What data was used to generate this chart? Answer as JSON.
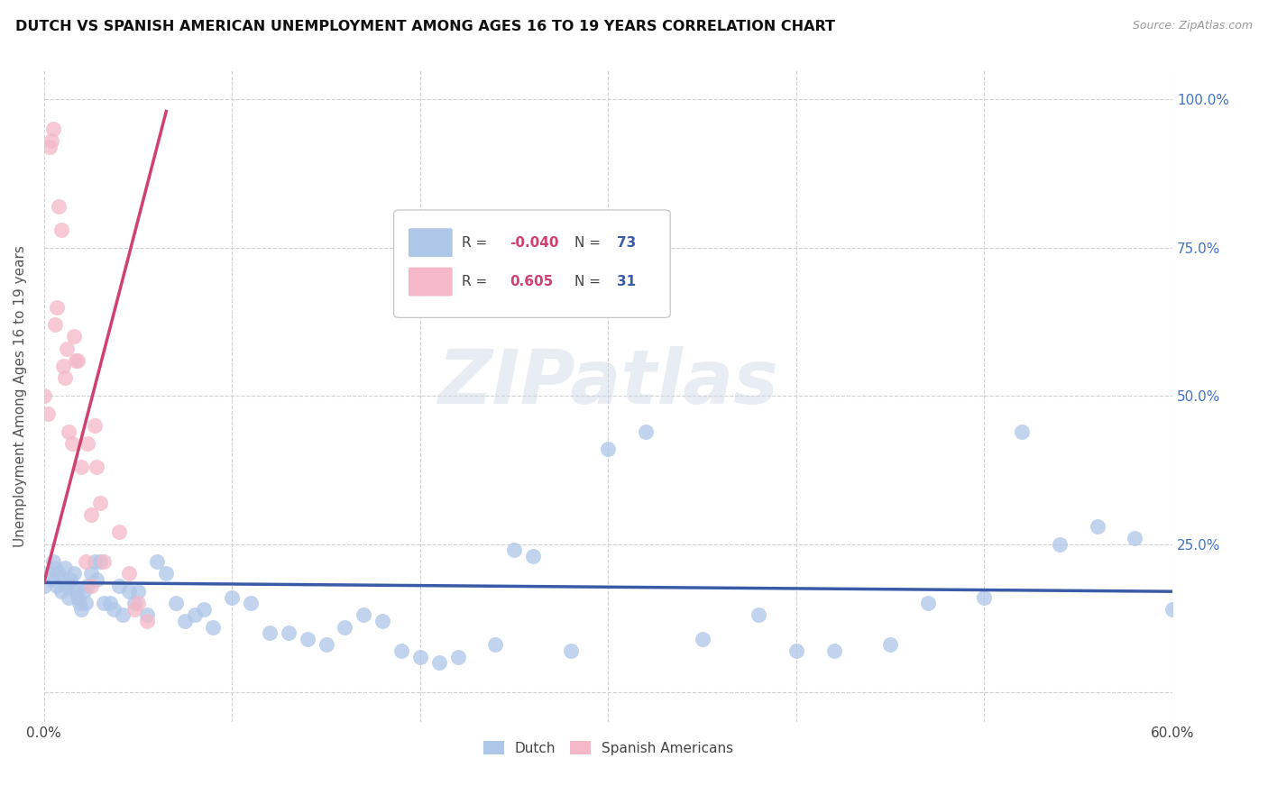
{
  "title": "DUTCH VS SPANISH AMERICAN UNEMPLOYMENT AMONG AGES 16 TO 19 YEARS CORRELATION CHART",
  "source": "Source: ZipAtlas.com",
  "ylabel": "Unemployment Among Ages 16 to 19 years",
  "xlim": [
    0.0,
    0.6
  ],
  "ylim": [
    -0.05,
    1.05
  ],
  "x_ticks": [
    0.0,
    0.1,
    0.2,
    0.3,
    0.4,
    0.5,
    0.6
  ],
  "x_tick_labels": [
    "0.0%",
    "",
    "",
    "",
    "",
    "",
    "60.0%"
  ],
  "y_ticks": [
    0.0,
    0.25,
    0.5,
    0.75,
    1.0
  ],
  "y_tick_labels": [
    "",
    "25.0%",
    "50.0%",
    "75.0%",
    "100.0%"
  ],
  "dutch_color": "#aec6e8",
  "spanish_color": "#f4b8c8",
  "dutch_line_color": "#3a5ca8",
  "spanish_line_color": "#d04070",
  "dutch_R": -0.04,
  "dutch_N": 73,
  "spanish_R": 0.605,
  "spanish_N": 31,
  "watermark": "ZIPatlas",
  "dutch_x": [
    0.0,
    0.002,
    0.004,
    0.005,
    0.006,
    0.007,
    0.008,
    0.009,
    0.01,
    0.011,
    0.012,
    0.013,
    0.014,
    0.015,
    0.016,
    0.017,
    0.018,
    0.019,
    0.02,
    0.021,
    0.022,
    0.023,
    0.025,
    0.027,
    0.028,
    0.03,
    0.032,
    0.035,
    0.037,
    0.04,
    0.042,
    0.045,
    0.048,
    0.05,
    0.055,
    0.06,
    0.065,
    0.07,
    0.075,
    0.08,
    0.085,
    0.09,
    0.1,
    0.11,
    0.12,
    0.13,
    0.14,
    0.15,
    0.16,
    0.17,
    0.18,
    0.19,
    0.2,
    0.21,
    0.22,
    0.24,
    0.25,
    0.26,
    0.28,
    0.3,
    0.32,
    0.35,
    0.38,
    0.4,
    0.42,
    0.45,
    0.47,
    0.5,
    0.52,
    0.54,
    0.56,
    0.58,
    0.6
  ],
  "dutch_y": [
    0.18,
    0.2,
    0.19,
    0.22,
    0.21,
    0.18,
    0.2,
    0.17,
    0.19,
    0.21,
    0.18,
    0.16,
    0.19,
    0.18,
    0.2,
    0.17,
    0.16,
    0.15,
    0.14,
    0.17,
    0.15,
    0.18,
    0.2,
    0.22,
    0.19,
    0.22,
    0.15,
    0.15,
    0.14,
    0.18,
    0.13,
    0.17,
    0.15,
    0.17,
    0.13,
    0.22,
    0.2,
    0.15,
    0.12,
    0.13,
    0.14,
    0.11,
    0.16,
    0.15,
    0.1,
    0.1,
    0.09,
    0.08,
    0.11,
    0.13,
    0.12,
    0.07,
    0.06,
    0.05,
    0.06,
    0.08,
    0.24,
    0.23,
    0.07,
    0.41,
    0.44,
    0.09,
    0.13,
    0.07,
    0.07,
    0.08,
    0.15,
    0.16,
    0.44,
    0.25,
    0.28,
    0.26,
    0.14
  ],
  "spanish_x": [
    0.0,
    0.002,
    0.003,
    0.004,
    0.005,
    0.006,
    0.007,
    0.008,
    0.009,
    0.01,
    0.011,
    0.012,
    0.013,
    0.015,
    0.016,
    0.017,
    0.018,
    0.02,
    0.022,
    0.023,
    0.025,
    0.025,
    0.027,
    0.028,
    0.03,
    0.032,
    0.04,
    0.045,
    0.048,
    0.05,
    0.055
  ],
  "spanish_y": [
    0.5,
    0.47,
    0.92,
    0.93,
    0.95,
    0.62,
    0.65,
    0.82,
    0.78,
    0.55,
    0.53,
    0.58,
    0.44,
    0.42,
    0.6,
    0.56,
    0.56,
    0.38,
    0.22,
    0.42,
    0.3,
    0.18,
    0.45,
    0.38,
    0.32,
    0.22,
    0.27,
    0.2,
    0.14,
    0.15,
    0.12
  ],
  "dutch_trend_x": [
    0.0,
    0.6
  ],
  "dutch_trend_y": [
    0.185,
    0.17
  ],
  "spanish_trend_x": [
    0.0,
    0.065
  ],
  "spanish_trend_y": [
    0.185,
    0.98
  ]
}
